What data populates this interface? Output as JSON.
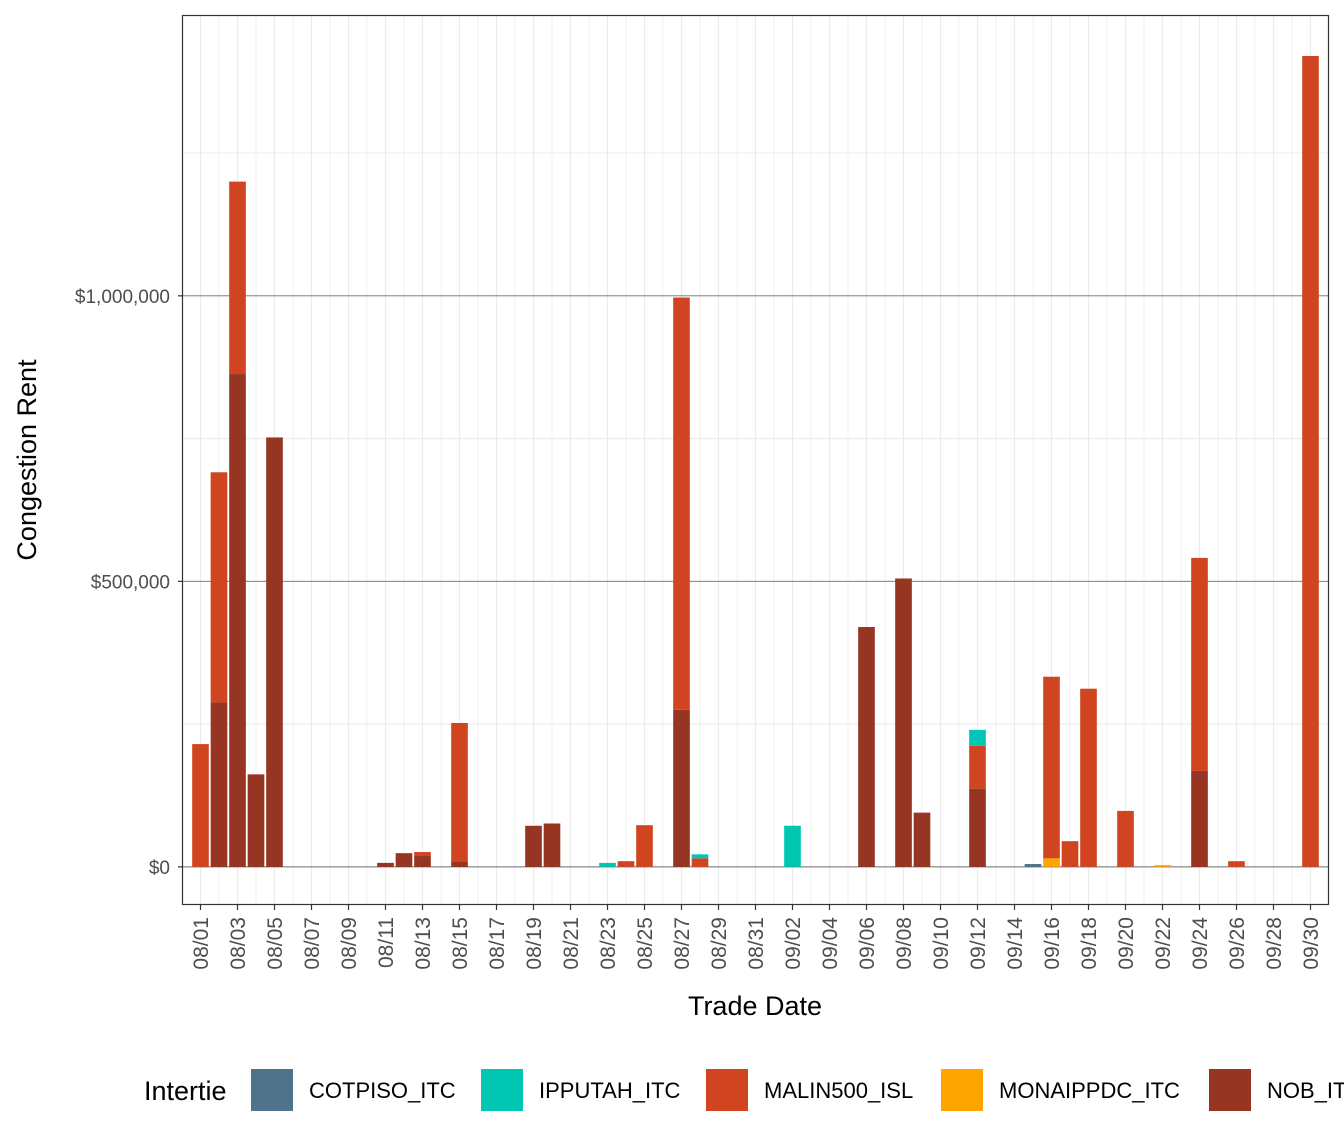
{
  "chart_data": {
    "type": "bar",
    "stacked": true,
    "xlabel": "Trade Date",
    "ylabel": "Congestion Rent",
    "ylim": [
      -65000,
      1490000
    ],
    "grid": true,
    "legend_position": "bottom",
    "legend_title": "Intertie",
    "y_tick_values": [
      0,
      500000,
      1000000
    ],
    "y_tick_labels": [
      "$0",
      "$500,000",
      "$1,000,000"
    ],
    "x_tick_labels": [
      "08/01",
      "08/03",
      "08/05",
      "08/07",
      "08/09",
      "08/11",
      "08/13",
      "08/15",
      "08/17",
      "08/19",
      "08/21",
      "08/23",
      "08/25",
      "08/27",
      "08/29",
      "08/31",
      "09/02",
      "09/04",
      "09/06",
      "09/08",
      "09/10",
      "09/12",
      "09/14",
      "09/16",
      "09/18",
      "09/20",
      "09/22",
      "09/24",
      "09/26",
      "09/28",
      "09/30"
    ],
    "categories": [
      "08/01",
      "08/02",
      "08/03",
      "08/04",
      "08/05",
      "08/06",
      "08/07",
      "08/08",
      "08/09",
      "08/10",
      "08/11",
      "08/12",
      "08/13",
      "08/14",
      "08/15",
      "08/16",
      "08/17",
      "08/18",
      "08/19",
      "08/20",
      "08/21",
      "08/22",
      "08/23",
      "08/24",
      "08/25",
      "08/26",
      "08/27",
      "08/28",
      "08/29",
      "08/30",
      "08/31",
      "09/01",
      "09/02",
      "09/03",
      "09/04",
      "09/05",
      "09/06",
      "09/07",
      "09/08",
      "09/09",
      "09/10",
      "09/11",
      "09/12",
      "09/13",
      "09/14",
      "09/15",
      "09/16",
      "09/17",
      "09/18",
      "09/19",
      "09/20",
      "09/21",
      "09/22",
      "09/23",
      "09/24",
      "09/25",
      "09/26",
      "09/27",
      "09/28",
      "09/29",
      "09/30"
    ],
    "series": [
      {
        "name": "COTPISO_ITC",
        "color": "#4e738a",
        "values": [
          0,
          0,
          0,
          0,
          0,
          0,
          0,
          0,
          0,
          0,
          0,
          0,
          0,
          0,
          0,
          0,
          0,
          0,
          0,
          0,
          0,
          0,
          0,
          0,
          0,
          0,
          0,
          0,
          0,
          0,
          0,
          0,
          0,
          0,
          0,
          0,
          0,
          0,
          0,
          0,
          0,
          0,
          0,
          0,
          0,
          5000,
          0,
          0,
          0,
          0,
          0,
          0,
          0,
          0,
          0,
          0,
          0,
          0,
          0,
          0,
          0
        ]
      },
      {
        "name": "IPPUTAH_ITC",
        "color": "#00c6b2",
        "values": [
          0,
          0,
          0,
          0,
          0,
          0,
          0,
          0,
          0,
          0,
          0,
          0,
          0,
          0,
          0,
          0,
          0,
          0,
          0,
          0,
          0,
          0,
          7000,
          0,
          0,
          0,
          0,
          7000,
          0,
          0,
          0,
          0,
          72000,
          0,
          0,
          0,
          0,
          0,
          0,
          0,
          0,
          0,
          28000,
          0,
          0,
          0,
          0,
          0,
          0,
          0,
          0,
          0,
          0,
          0,
          0,
          0,
          0,
          0,
          0,
          0,
          0
        ]
      },
      {
        "name": "MALIN500_ISL",
        "color": "#d04520",
        "values": [
          215000,
          403000,
          337000,
          0,
          0,
          0,
          0,
          0,
          0,
          0,
          0,
          0,
          7000,
          0,
          242000,
          0,
          0,
          0,
          0,
          0,
          0,
          0,
          0,
          10000,
          73000,
          0,
          722000,
          15000,
          0,
          0,
          0,
          0,
          0,
          0,
          0,
          0,
          0,
          0,
          0,
          0,
          0,
          0,
          75000,
          0,
          0,
          0,
          318000,
          45000,
          312000,
          0,
          98000,
          0,
          0,
          0,
          373000,
          0,
          10000,
          0,
          0,
          0,
          1420000
        ]
      },
      {
        "name": "MONAIPPDC_ITC",
        "color": "#ffa500",
        "values": [
          0,
          0,
          0,
          0,
          0,
          0,
          0,
          0,
          0,
          0,
          0,
          0,
          0,
          0,
          0,
          0,
          0,
          0,
          0,
          0,
          0,
          0,
          0,
          0,
          0,
          0,
          0,
          0,
          0,
          0,
          0,
          0,
          0,
          0,
          0,
          0,
          0,
          0,
          0,
          0,
          0,
          0,
          0,
          0,
          0,
          0,
          15000,
          0,
          0,
          0,
          0,
          0,
          3000,
          0,
          0,
          0,
          0,
          0,
          0,
          0,
          0
        ]
      },
      {
        "name": "NOB_ITC",
        "color": "#953522",
        "values": [
          0,
          288000,
          863000,
          162000,
          752000,
          0,
          0,
          0,
          0,
          0,
          7000,
          24000,
          19000,
          0,
          10000,
          0,
          0,
          0,
          72000,
          76000,
          0,
          0,
          0,
          0,
          0,
          0,
          275000,
          0,
          0,
          0,
          0,
          0,
          0,
          0,
          0,
          0,
          420000,
          0,
          505000,
          95000,
          0,
          0,
          137000,
          0,
          0,
          0,
          0,
          0,
          0,
          0,
          0,
          0,
          0,
          0,
          168000,
          0,
          0,
          0,
          0,
          0,
          0
        ]
      }
    ]
  },
  "legend": {
    "title": "Intertie",
    "items": [
      {
        "label": "COTPISO_ITC",
        "color": "#4e738a"
      },
      {
        "label": "IPPUTAH_ITC",
        "color": "#00c6b2"
      },
      {
        "label": "MALIN500_ISL",
        "color": "#d04520"
      },
      {
        "label": "MONAIPPDC_ITC",
        "color": "#ffa500"
      },
      {
        "label": "NOB_ITC",
        "color": "#953522"
      }
    ]
  }
}
